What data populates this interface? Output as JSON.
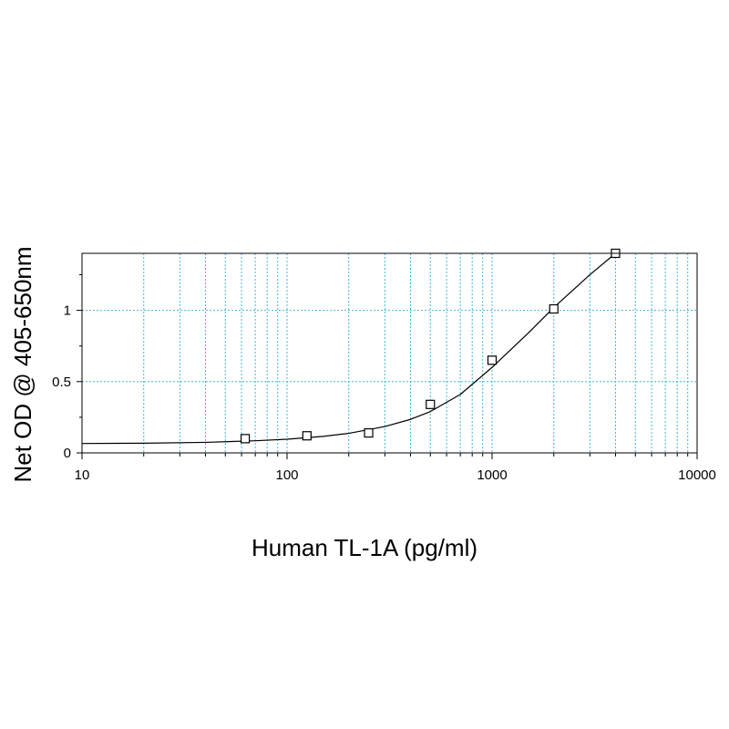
{
  "chart_data": {
    "type": "scatter",
    "title": "",
    "xlabel": "Human TL-1A (pg/ml)",
    "ylabel": "Net OD @ 405-650nm",
    "x_scale": "log",
    "xlim": [
      10,
      10000
    ],
    "ylim": [
      0,
      1.4
    ],
    "x_ticks": [
      "10",
      "100",
      "1000",
      "10000"
    ],
    "y_ticks": [
      "0",
      "0.5",
      "1"
    ],
    "grid": true,
    "legend": "none",
    "series": [
      {
        "marker": "open-square",
        "points": [
          {
            "x": 62.5,
            "y": 0.1
          },
          {
            "x": 125,
            "y": 0.12
          },
          {
            "x": 250,
            "y": 0.14
          },
          {
            "x": 500,
            "y": 0.34
          },
          {
            "x": 1000,
            "y": 0.65
          },
          {
            "x": 2000,
            "y": 1.01
          },
          {
            "x": 4000,
            "y": 1.4
          }
        ]
      }
    ],
    "fit_curve": {
      "type": "4PL",
      "points": [
        {
          "x": 10,
          "y": 0.066
        },
        {
          "x": 20,
          "y": 0.068
        },
        {
          "x": 40,
          "y": 0.074
        },
        {
          "x": 70,
          "y": 0.085
        },
        {
          "x": 100,
          "y": 0.096
        },
        {
          "x": 150,
          "y": 0.116
        },
        {
          "x": 200,
          "y": 0.137
        },
        {
          "x": 300,
          "y": 0.185
        },
        {
          "x": 400,
          "y": 0.235
        },
        {
          "x": 500,
          "y": 0.29
        },
        {
          "x": 700,
          "y": 0.41
        },
        {
          "x": 1000,
          "y": 0.6
        },
        {
          "x": 1500,
          "y": 0.84
        },
        {
          "x": 2000,
          "y": 1.02
        },
        {
          "x": 3000,
          "y": 1.25
        },
        {
          "x": 4000,
          "y": 1.4
        }
      ]
    },
    "colors": {
      "grid": "#40b8d8",
      "frame": "#000000",
      "curve": "#000000",
      "marker": "#000000"
    }
  }
}
